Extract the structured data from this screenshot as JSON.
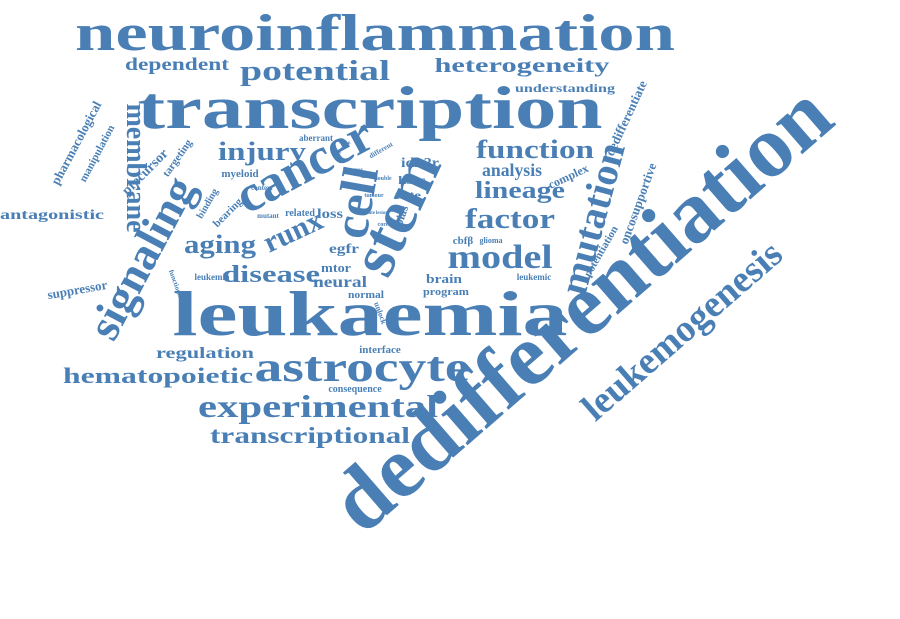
{
  "color": "#4a7fb5",
  "words": [
    "dedifferentiation",
    "leukaemia",
    "neuroinflammation",
    "transcription",
    "astrocyte",
    "stem",
    "cell",
    "cancer",
    "signaling",
    "leukemogenesis",
    "mutation",
    "experimental",
    "membrane",
    "model",
    "transcriptional",
    "potential",
    "heterogeneity",
    "dependent",
    "injury",
    "aging",
    "runx",
    "function",
    "lineage",
    "factor",
    "disease",
    "hematopoietic",
    "regulation",
    "neural",
    "antagonistic",
    "suppressor",
    "pharmacological",
    "manipulation",
    "precursor",
    "targeting",
    "understanding",
    "dedifferentiate",
    "analysis",
    "complex",
    "oncosupportive",
    "potentiation",
    "idh2r",
    "hscs",
    "rate",
    "bias",
    "egfr",
    "mtor",
    "normal",
    "brain",
    "program",
    "leukemic",
    "cbfβ",
    "glioma",
    "interface",
    "consequence",
    "myeloid",
    "context",
    "binding",
    "bearing",
    "related",
    "loss",
    "leukemia",
    "functional",
    "mutant",
    "unlock",
    "aberrant",
    "prime",
    "tissue",
    "different",
    "tumour",
    "double",
    "state",
    "lesion",
    "core",
    "tumor"
  ]
}
